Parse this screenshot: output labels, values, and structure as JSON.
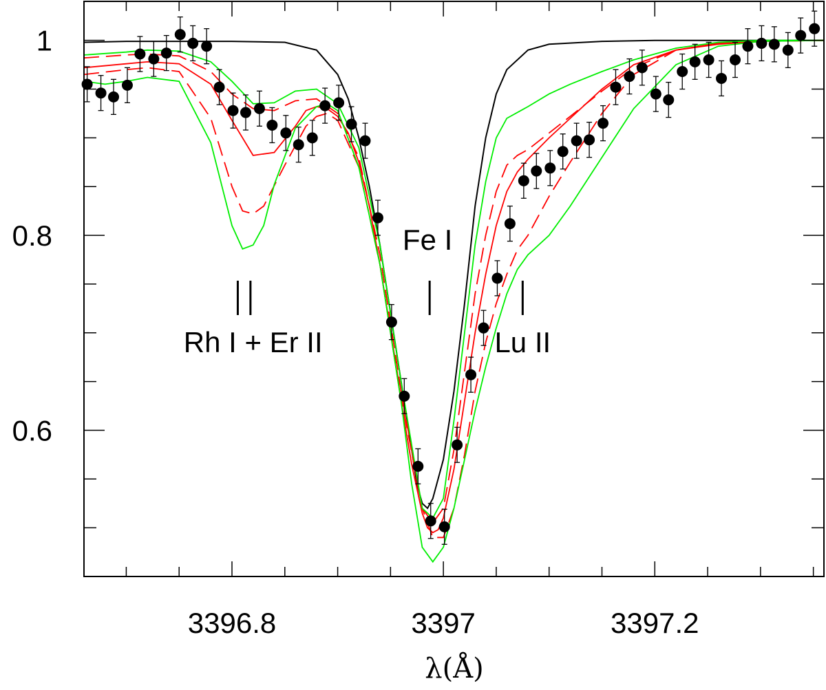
{
  "chart_data": {
    "type": "line",
    "title": "",
    "xlabel": "λ(Å)",
    "ylabel": "",
    "xlim": [
      3396.66,
      3397.36
    ],
    "ylim": [
      0.45,
      1.04
    ],
    "grid": false,
    "x_ticks": [
      {
        "value": 3396.8,
        "label": "3396.8"
      },
      {
        "value": 3397.0,
        "label": "3397"
      },
      {
        "value": 3397.2,
        "label": "3397.2"
      }
    ],
    "y_ticks": [
      {
        "value": 0.6,
        "label": "0.6"
      },
      {
        "value": 0.8,
        "label": "0.8"
      },
      {
        "value": 1.0,
        "label": "1"
      }
    ],
    "annotations": [
      {
        "text": "Rh I + Er II",
        "x": 3396.82,
        "y": 0.69,
        "markers": [
          3396.8055,
          3396.8175
        ]
      },
      {
        "text": "Fe I",
        "x": 3396.985,
        "y": 0.795,
        "markers": [
          3396.987
        ]
      },
      {
        "text": "Lu II",
        "x": 3397.075,
        "y": 0.69,
        "markers": [
          3397.075
        ]
      }
    ],
    "observed": {
      "x": [
        3396.663,
        3396.676,
        3396.688,
        3396.701,
        3396.713,
        3396.726,
        3396.738,
        3396.751,
        3396.763,
        3396.776,
        3396.788,
        3396.801,
        3396.813,
        3396.826,
        3396.838,
        3396.851,
        3396.863,
        3396.876,
        3396.888,
        3396.901,
        3396.913,
        3396.926,
        3396.938,
        3396.951,
        3396.963,
        3396.976,
        3396.988,
        3397.001,
        3397.013,
        3397.026,
        3397.038,
        3397.051,
        3397.063,
        3397.076,
        3397.088,
        3397.101,
        3397.113,
        3397.126,
        3397.138,
        3397.151,
        3397.163,
        3397.176,
        3397.188,
        3397.201,
        3397.213,
        3397.226,
        3397.238,
        3397.251,
        3397.263,
        3397.276,
        3397.288,
        3397.301,
        3397.313,
        3397.326,
        3397.338,
        3397.351
      ],
      "y": [
        0.955,
        0.946,
        0.942,
        0.954,
        0.986,
        0.981,
        0.987,
        1.006,
        0.997,
        0.994,
        0.952,
        0.928,
        0.926,
        0.93,
        0.913,
        0.905,
        0.893,
        0.9,
        0.933,
        0.936,
        0.914,
        0.897,
        0.818,
        0.711,
        0.635,
        0.563,
        0.507,
        0.501,
        0.585,
        0.657,
        0.705,
        0.756,
        0.812,
        0.856,
        0.866,
        0.869,
        0.886,
        0.897,
        0.898,
        0.915,
        0.952,
        0.963,
        0.972,
        0.945,
        0.939,
        0.968,
        0.978,
        0.98,
        0.961,
        0.98,
        0.994,
        0.997,
        0.996,
        0.99,
        1.005,
        1.012
      ],
      "err": 0.018
    },
    "series": [
      {
        "style": "solid",
        "color": "#000000",
        "x": [
          3396.66,
          3396.7,
          3396.75,
          3396.8,
          3396.85,
          3396.88,
          3396.9,
          3396.91,
          3396.92,
          3396.93,
          3396.94,
          3396.95,
          3396.96,
          3396.97,
          3396.975,
          3396.98,
          3396.985,
          3396.99,
          3397.0,
          3397.01,
          3397.02,
          3397.03,
          3397.04,
          3397.05,
          3397.06,
          3397.08,
          3397.1,
          3397.15,
          3397.2,
          3397.3,
          3397.36
        ],
        "y": [
          0.998,
          0.999,
          0.999,
          0.999,
          0.998,
          0.99,
          0.965,
          0.94,
          0.9,
          0.85,
          0.79,
          0.72,
          0.65,
          0.58,
          0.545,
          0.525,
          0.52,
          0.53,
          0.57,
          0.64,
          0.73,
          0.83,
          0.9,
          0.945,
          0.97,
          0.99,
          0.996,
          0.999,
          1.0,
          1.0,
          1.0
        ]
      },
      {
        "style": "solid",
        "color": "#ff0000",
        "x": [
          3396.66,
          3396.7,
          3396.72,
          3396.75,
          3396.78,
          3396.8,
          3396.82,
          3396.84,
          3396.86,
          3396.87,
          3396.88,
          3396.89,
          3396.9,
          3396.91,
          3396.92,
          3396.93,
          3396.94,
          3396.95,
          3396.96,
          3396.97,
          3396.98,
          3396.985,
          3396.99,
          3396.995,
          3397.0,
          3397.01,
          3397.02,
          3397.03,
          3397.04,
          3397.05,
          3397.06,
          3397.07,
          3397.08,
          3397.1,
          3397.12,
          3397.15,
          3397.18,
          3397.22,
          3397.26,
          3397.3,
          3397.36
        ],
        "y": [
          0.972,
          0.976,
          0.978,
          0.976,
          0.955,
          0.918,
          0.882,
          0.885,
          0.912,
          0.928,
          0.932,
          0.93,
          0.922,
          0.905,
          0.875,
          0.83,
          0.77,
          0.7,
          0.63,
          0.565,
          0.515,
          0.5,
          0.495,
          0.498,
          0.51,
          0.56,
          0.63,
          0.7,
          0.76,
          0.81,
          0.845,
          0.865,
          0.878,
          0.9,
          0.92,
          0.95,
          0.975,
          0.99,
          0.996,
          0.999,
          1.0
        ]
      },
      {
        "style": "dashed",
        "color": "#ff0000",
        "x": [
          3396.66,
          3396.7,
          3396.72,
          3396.75,
          3396.78,
          3396.8,
          3396.81,
          3396.82,
          3396.83,
          3396.85,
          3396.87,
          3396.88,
          3396.89,
          3396.9,
          3396.92,
          3396.94,
          3396.96,
          3396.98,
          3396.99,
          3397.0,
          3397.01,
          3397.02,
          3397.03,
          3397.04,
          3397.05,
          3397.06,
          3397.07,
          3397.08,
          3397.1,
          3397.12,
          3397.15,
          3397.18,
          3397.22,
          3397.26,
          3397.3,
          3397.36
        ],
        "y": [
          0.965,
          0.97,
          0.972,
          0.968,
          0.92,
          0.85,
          0.825,
          0.822,
          0.83,
          0.872,
          0.912,
          0.922,
          0.925,
          0.918,
          0.87,
          0.77,
          0.635,
          0.52,
          0.49,
          0.49,
          0.52,
          0.575,
          0.64,
          0.69,
          0.73,
          0.76,
          0.785,
          0.8,
          0.84,
          0.875,
          0.925,
          0.965,
          0.99,
          0.997,
          0.999,
          1.0
        ]
      },
      {
        "style": "dashed",
        "color": "#ff0000",
        "x": [
          3396.66,
          3396.7,
          3396.72,
          3396.75,
          3396.78,
          3396.8,
          3396.82,
          3396.84,
          3396.86,
          3396.88,
          3396.9,
          3396.92,
          3396.94,
          3396.96,
          3396.98,
          3396.99,
          3397.0,
          3397.01,
          3397.02,
          3397.03,
          3397.04,
          3397.05,
          3397.06,
          3397.07,
          3397.08,
          3397.1,
          3397.12,
          3397.15,
          3397.18,
          3397.22,
          3397.26,
          3397.3,
          3397.36
        ],
        "y": [
          0.982,
          0.985,
          0.986,
          0.984,
          0.968,
          0.945,
          0.93,
          0.928,
          0.938,
          0.94,
          0.925,
          0.88,
          0.78,
          0.64,
          0.52,
          0.505,
          0.52,
          0.58,
          0.66,
          0.74,
          0.8,
          0.845,
          0.872,
          0.882,
          0.888,
          0.905,
          0.922,
          0.948,
          0.972,
          0.99,
          0.997,
          0.999,
          1.0
        ]
      },
      {
        "style": "solid",
        "color": "#00ee00",
        "x": [
          3396.66,
          3396.68,
          3396.7,
          3396.72,
          3396.75,
          3396.78,
          3396.8,
          3396.81,
          3396.82,
          3396.83,
          3396.84,
          3396.86,
          3396.88,
          3396.89,
          3396.9,
          3396.92,
          3396.94,
          3396.96,
          3396.97,
          3396.98,
          3396.99,
          3397.0,
          3397.01,
          3397.02,
          3397.03,
          3397.04,
          3397.05,
          3397.06,
          3397.07,
          3397.08,
          3397.1,
          3397.12,
          3397.15,
          3397.18,
          3397.22,
          3397.26,
          3397.3,
          3397.36
        ],
        "y": [
          0.958,
          0.955,
          0.958,
          0.962,
          0.958,
          0.895,
          0.81,
          0.786,
          0.79,
          0.81,
          0.852,
          0.91,
          0.932,
          0.935,
          0.928,
          0.87,
          0.77,
          0.63,
          0.545,
          0.48,
          0.465,
          0.48,
          0.52,
          0.57,
          0.62,
          0.665,
          0.705,
          0.74,
          0.765,
          0.78,
          0.8,
          0.83,
          0.88,
          0.93,
          0.975,
          0.994,
          0.999,
          1.0
        ]
      },
      {
        "style": "solid",
        "color": "#00ee00",
        "x": [
          3396.66,
          3396.7,
          3396.72,
          3396.75,
          3396.78,
          3396.8,
          3396.82,
          3396.84,
          3396.86,
          3396.88,
          3396.9,
          3396.92,
          3396.94,
          3396.96,
          3396.98,
          3396.99,
          3397.0,
          3397.01,
          3397.02,
          3397.03,
          3397.04,
          3397.05,
          3397.06,
          3397.08,
          3397.1,
          3397.12,
          3397.15,
          3397.18,
          3397.22,
          3397.26,
          3397.3,
          3397.36
        ],
        "y": [
          0.985,
          0.988,
          0.99,
          0.989,
          0.978,
          0.958,
          0.935,
          0.936,
          0.948,
          0.95,
          0.935,
          0.89,
          0.79,
          0.65,
          0.52,
          0.51,
          0.53,
          0.61,
          0.7,
          0.79,
          0.855,
          0.9,
          0.92,
          0.932,
          0.945,
          0.955,
          0.968,
          0.98,
          0.992,
          0.998,
          1.0,
          1.0
        ]
      }
    ]
  }
}
